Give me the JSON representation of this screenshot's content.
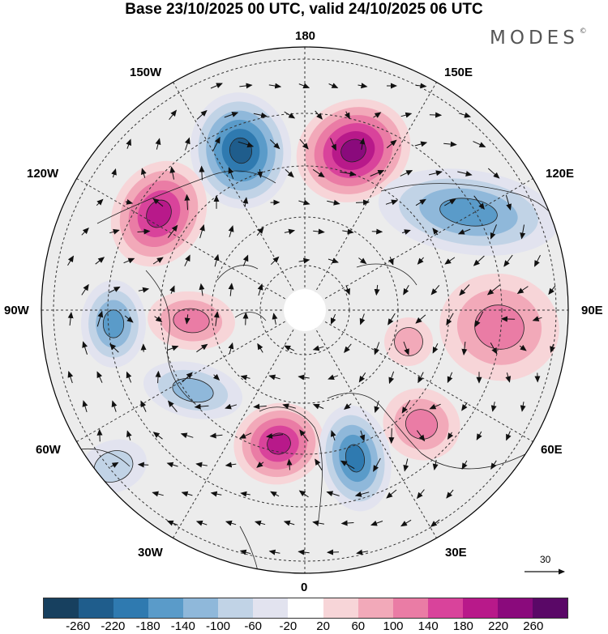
{
  "header": {
    "title": "Base 23/10/2025 00 UTC, valid 24/10/2025 06 UTC",
    "brand": "MODES",
    "brand_mark": "©"
  },
  "map": {
    "projection": "north-polar-stereographic",
    "longitude_labels": {
      "top": "180",
      "bottom": "0",
      "left": "90W",
      "right": "90E",
      "upper_left_outer": "150W",
      "upper_left_inner": "120W",
      "upper_right_outer": "150E",
      "upper_right_inner": "120E",
      "lower_left_outer": "60W",
      "lower_left_inner": "30W",
      "lower_right_outer": "60E",
      "lower_right_inner": "30E"
    },
    "wind_scale": {
      "value": "30",
      "unit_arrow": "reference-arrow"
    }
  },
  "legend": {
    "ticks": [
      "-260",
      "-220",
      "-180",
      "-140",
      "-100",
      "-60",
      "-20",
      "20",
      "60",
      "100",
      "140",
      "180",
      "220",
      "260"
    ],
    "colors": [
      "#17405f",
      "#1f5d8c",
      "#2f7ab0",
      "#5a9bc9",
      "#8fb8da",
      "#c1d3e6",
      "#e2e3ef",
      "#ffffff",
      "#f7d5d8",
      "#f2a9b9",
      "#ea7ca5",
      "#d9439b",
      "#b8198a",
      "#8a0a7c",
      "#5a0867"
    ]
  },
  "anomaly_centers": [
    {
      "id": "north-pacific-low",
      "sign": "negative",
      "magnitude": -240
    },
    {
      "id": "north-pacific-high",
      "sign": "positive",
      "magnitude": 240
    },
    {
      "id": "alaska-high",
      "sign": "positive",
      "magnitude": 220
    },
    {
      "id": "siberia-low",
      "sign": "negative",
      "magnitude": -180
    },
    {
      "id": "central-asia-high",
      "sign": "positive",
      "magnitude": 140
    },
    {
      "id": "canada-low",
      "sign": "negative",
      "magnitude": -180
    },
    {
      "id": "hudson-high",
      "sign": "positive",
      "magnitude": 140
    },
    {
      "id": "labrador-low",
      "sign": "negative",
      "magnitude": -140
    },
    {
      "id": "north-atlantic-high",
      "sign": "positive",
      "magnitude": 200
    },
    {
      "id": "scandinavia-low",
      "sign": "negative",
      "magnitude": -220
    },
    {
      "id": "caspian-high",
      "sign": "positive",
      "magnitude": 140
    },
    {
      "id": "arctic-high",
      "sign": "positive",
      "magnitude": 100
    },
    {
      "id": "atlantic-low",
      "sign": "negative",
      "magnitude": -100
    }
  ]
}
